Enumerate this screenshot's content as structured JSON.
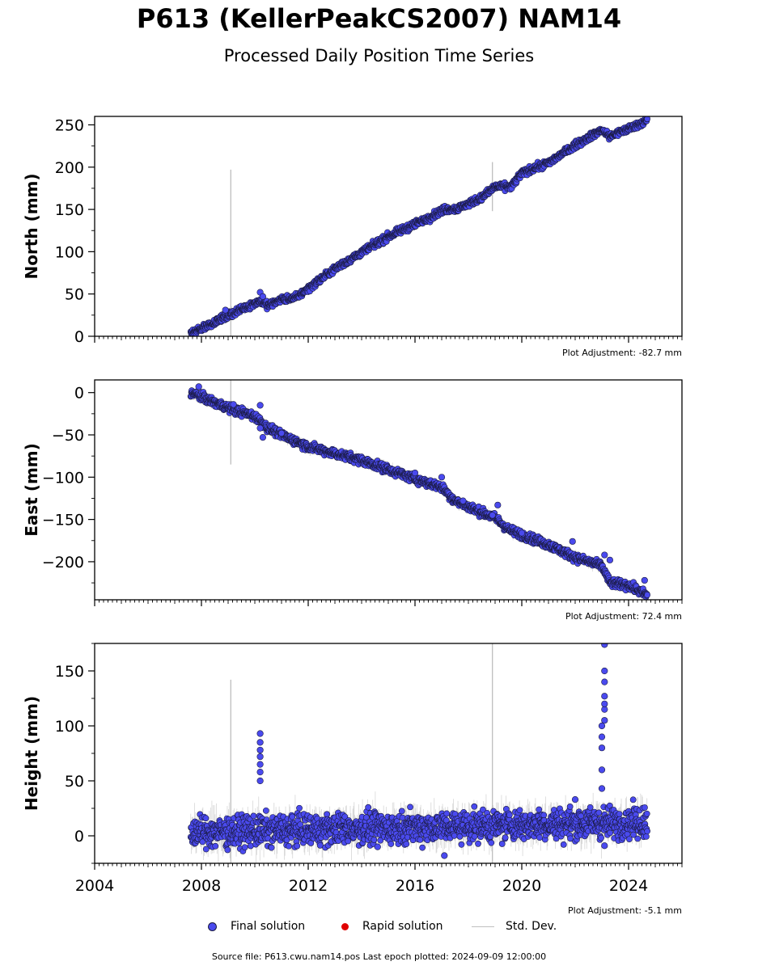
{
  "header": {
    "title": "P613 (KellerPeakCS2007) NAM14",
    "subtitle": "Processed Daily Position Time Series"
  },
  "legend": {
    "final": "Final solution",
    "rapid": "Rapid solution",
    "stddev": "Std. Dev."
  },
  "footer": {
    "source": "Source file: P613.cwu.nam14.pos  Last epoch plotted: 2024-09-09 12:00:00"
  },
  "colors": {
    "final": "#4a4aee",
    "rapid": "#e00000",
    "stddev": "#c0c0c0",
    "outline": "#1a1a40"
  },
  "chart_data": [
    {
      "type": "scatter",
      "name": "north",
      "ylabel": "North (mm)",
      "xlim": [
        2004,
        2026
      ],
      "ylim": [
        0,
        260
      ],
      "yticks": [
        0,
        50,
        100,
        150,
        200,
        250
      ],
      "adjustment": "Plot Adjustment: -82.7 mm",
      "trend": [
        [
          2007.6,
          3
        ],
        [
          2008.5,
          17
        ],
        [
          2009.5,
          32
        ],
        [
          2010.2,
          42
        ],
        [
          2010.5,
          36
        ],
        [
          2011.0,
          44
        ],
        [
          2011.5,
          45
        ],
        [
          2013.0,
          80
        ],
        [
          2015.0,
          118
        ],
        [
          2016.5,
          140
        ],
        [
          2017.1,
          150
        ],
        [
          2017.6,
          151
        ],
        [
          2018.5,
          164
        ],
        [
          2019.0,
          177
        ],
        [
          2019.6,
          177
        ],
        [
          2020.0,
          193
        ],
        [
          2021.0,
          205
        ],
        [
          2022.0,
          226
        ],
        [
          2023.0,
          244
        ],
        [
          2023.3,
          236
        ],
        [
          2023.8,
          243
        ],
        [
          2024.7,
          255
        ]
      ],
      "scatter_sd": 2,
      "outliers": [
        [
          2008.9,
          31
        ],
        [
          2010.2,
          52
        ],
        [
          2010.3,
          47
        ]
      ],
      "sd_spikes": [
        [
          2009.1,
          0,
          197
        ],
        [
          2018.9,
          148,
          206
        ]
      ]
    },
    {
      "type": "scatter",
      "name": "east",
      "ylabel": "East (mm)",
      "xlim": [
        2004,
        2026
      ],
      "ylim": [
        -245,
        15
      ],
      "yticks": [
        -200,
        -150,
        -100,
        -50,
        0
      ],
      "adjustment": "Plot Adjustment: 72.4 mm",
      "trend": [
        [
          2007.6,
          0
        ],
        [
          2009.0,
          -18
        ],
        [
          2010.0,
          -28
        ],
        [
          2010.5,
          -42
        ],
        [
          2011.0,
          -50
        ],
        [
          2012.0,
          -64
        ],
        [
          2014.0,
          -80
        ],
        [
          2016.0,
          -102
        ],
        [
          2017.0,
          -112
        ],
        [
          2017.5,
          -128
        ],
        [
          2018.5,
          -142
        ],
        [
          2019.0,
          -148
        ],
        [
          2019.5,
          -162
        ],
        [
          2021.0,
          -180
        ],
        [
          2022.0,
          -195
        ],
        [
          2023.0,
          -205
        ],
        [
          2023.3,
          -225
        ],
        [
          2024.0,
          -228
        ],
        [
          2024.7,
          -240
        ]
      ],
      "scatter_sd": 2.5,
      "outliers": [
        [
          2007.9,
          7
        ],
        [
          2009.2,
          -14
        ],
        [
          2010.2,
          -15
        ],
        [
          2010.2,
          -42
        ],
        [
          2010.3,
          -53
        ],
        [
          2011.0,
          -48
        ],
        [
          2016.0,
          -95
        ],
        [
          2017.0,
          -100
        ],
        [
          2017.8,
          -128
        ],
        [
          2018.9,
          -145
        ],
        [
          2019.1,
          -133
        ],
        [
          2020.0,
          -166
        ],
        [
          2021.9,
          -176
        ],
        [
          2023.1,
          -192
        ],
        [
          2023.3,
          -198
        ],
        [
          2024.6,
          -222
        ]
      ],
      "sd_spikes": [
        [
          2009.1,
          -85,
          15
        ]
      ]
    },
    {
      "type": "scatter",
      "name": "height",
      "ylabel": "Height (mm)",
      "xlim": [
        2004,
        2026
      ],
      "ylim": [
        -25,
        175
      ],
      "yticks": [
        0,
        50,
        100,
        150
      ],
      "xticks": [
        2004,
        2008,
        2012,
        2016,
        2020,
        2024
      ],
      "adjustment": "Plot Adjustment: -5.1 mm",
      "trend": [
        [
          2007.6,
          3
        ],
        [
          2024.7,
          13
        ]
      ],
      "scatter_sd": 7,
      "outliers": [
        [
          2010.2,
          93
        ],
        [
          2010.2,
          85
        ],
        [
          2010.2,
          78
        ],
        [
          2010.2,
          72
        ],
        [
          2010.2,
          65
        ],
        [
          2010.2,
          58
        ],
        [
          2010.2,
          50
        ],
        [
          2014.6,
          -10
        ],
        [
          2017.1,
          -18
        ],
        [
          2022.0,
          33
        ],
        [
          2023.0,
          43
        ],
        [
          2023.0,
          60
        ],
        [
          2023.0,
          80
        ],
        [
          2023.0,
          90
        ],
        [
          2023.0,
          100
        ],
        [
          2023.1,
          105
        ],
        [
          2023.1,
          115
        ],
        [
          2023.1,
          120
        ],
        [
          2023.1,
          127
        ],
        [
          2023.1,
          140
        ],
        [
          2023.1,
          150
        ],
        [
          2023.1,
          174
        ],
        [
          2023.1,
          -9
        ]
      ],
      "sd_spikes": [
        [
          2009.1,
          -25,
          142
        ],
        [
          2018.9,
          -25,
          175
        ]
      ]
    }
  ]
}
